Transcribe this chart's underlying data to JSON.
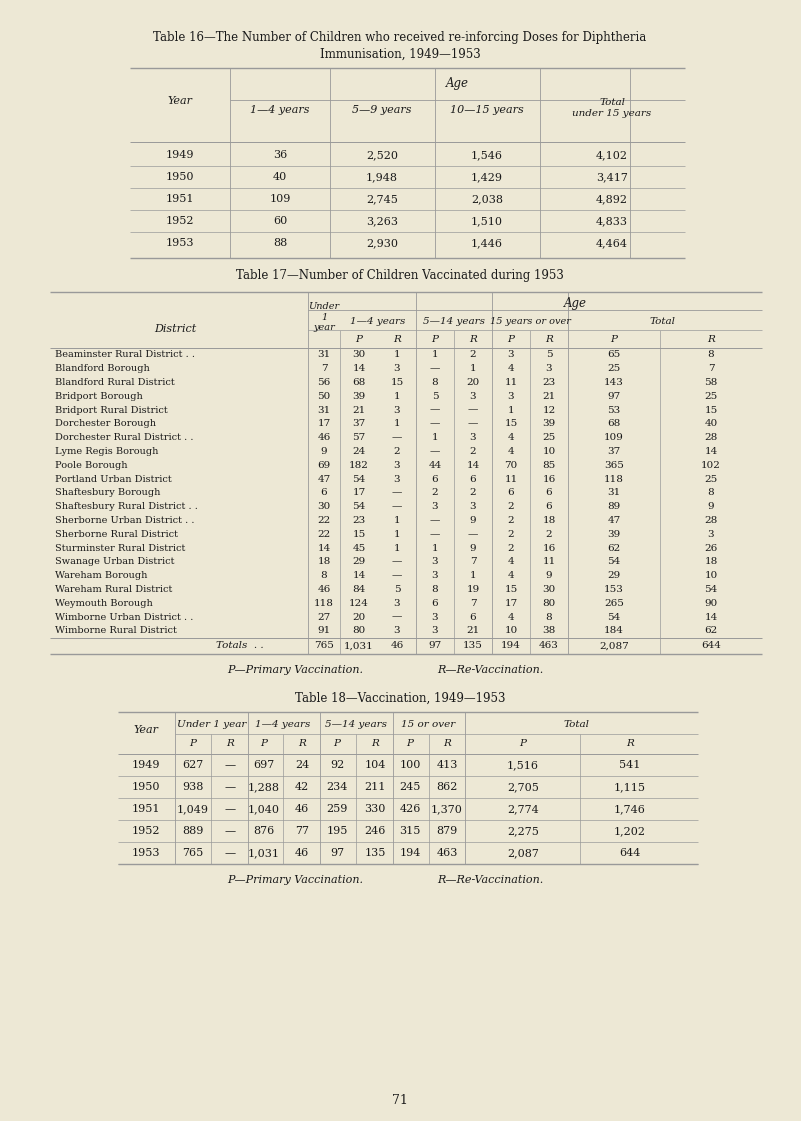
{
  "bg_color": "#ede8d5",
  "text_color": "#1a1a1a",
  "page_number": "71",
  "table16_title1": "Table 16—The Number of Children who received re-inforcing Doses for Diphtheria",
  "table16_title2": "Immunisation, 1949—1953",
  "table16_rows": [
    [
      "1949",
      "36",
      "2,520",
      "1,546",
      "4,102"
    ],
    [
      "1950",
      "40",
      "1,948",
      "1,429",
      "3,417"
    ],
    [
      "1951",
      "109",
      "2,745",
      "2,038",
      "4,892"
    ],
    [
      "1952",
      "60",
      "3,263",
      "1,510",
      "4,833"
    ],
    [
      "1953",
      "88",
      "2,930",
      "1,446",
      "4,464"
    ]
  ],
  "table17_title": "Table 17—Number of Children Vaccinated during 1953",
  "table17_rows": [
    [
      "Beaminster Rural District . .",
      "31",
      "30",
      "1",
      "1",
      "2",
      "3",
      "5",
      "65",
      "8"
    ],
    [
      "Blandford Borough",
      "7",
      "14",
      "3",
      "—",
      "1",
      "4",
      "3",
      "25",
      "7"
    ],
    [
      "Blandford Rural District",
      "56",
      "68",
      "15",
      "8",
      "20",
      "11",
      "23",
      "143",
      "58"
    ],
    [
      "Bridport Borough",
      "50",
      "39",
      "1",
      "5",
      "3",
      "3",
      "21",
      "97",
      "25"
    ],
    [
      "Bridport Rural District",
      "31",
      "21",
      "3",
      "—",
      "—",
      "1",
      "12",
      "53",
      "15"
    ],
    [
      "Dorchester Borough",
      "17",
      "37",
      "1",
      "—",
      "—",
      "15",
      "39",
      "68",
      "40"
    ],
    [
      "Dorchester Rural District . .",
      "46",
      "57",
      "—",
      "1",
      "3",
      "4",
      "25",
      "109",
      "28"
    ],
    [
      "Lyme Regis Borough",
      "9",
      "24",
      "2",
      "—",
      "2",
      "4",
      "10",
      "37",
      "14"
    ],
    [
      "Poole Borough",
      "69",
      "182",
      "3",
      "44",
      "14",
      "70",
      "85",
      "365",
      "102"
    ],
    [
      "Portland Urban District",
      "47",
      "54",
      "3",
      "6",
      "6",
      "11",
      "16",
      "118",
      "25"
    ],
    [
      "Shaftesbury Borough",
      "6",
      "17",
      "—",
      "2",
      "2",
      "6",
      "6",
      "31",
      "8"
    ],
    [
      "Shaftesbury Rural District . .",
      "30",
      "54",
      "—",
      "3",
      "3",
      "2",
      "6",
      "89",
      "9"
    ],
    [
      "Sherborne Urban District . .",
      "22",
      "23",
      "1",
      "—",
      "9",
      "2",
      "18",
      "47",
      "28"
    ],
    [
      "Sherborne Rural District",
      "22",
      "15",
      "1",
      "—",
      "—",
      "2",
      "2",
      "39",
      "3"
    ],
    [
      "Sturminster Rural District",
      "14",
      "45",
      "1",
      "1",
      "9",
      "2",
      "16",
      "62",
      "26"
    ],
    [
      "Swanage Urban District",
      "18",
      "29",
      "—",
      "3",
      "7",
      "4",
      "11",
      "54",
      "18"
    ],
    [
      "Wareham Borough",
      "8",
      "14",
      "—",
      "3",
      "1",
      "4",
      "9",
      "29",
      "10"
    ],
    [
      "Wareham Rural District",
      "46",
      "84",
      "5",
      "8",
      "19",
      "15",
      "30",
      "153",
      "54"
    ],
    [
      "Weymouth Borough",
      "118",
      "124",
      "3",
      "6",
      "7",
      "17",
      "80",
      "265",
      "90"
    ],
    [
      "Wimborne Urban District . .",
      "27",
      "20",
      "—",
      "3",
      "6",
      "4",
      "8",
      "54",
      "14"
    ],
    [
      "Wimborne Rural District",
      "91",
      "80",
      "3",
      "3",
      "21",
      "10",
      "38",
      "184",
      "62"
    ]
  ],
  "table17_totals": [
    "Totals",
    "765",
    "1,031",
    "46",
    "97",
    "135",
    "194",
    "463",
    "2,087",
    "644"
  ],
  "table17_footnote1": "P—Primary Vaccination.",
  "table17_footnote2": "R—Re-Vaccination.",
  "table18_title": "Table 18—Vaccination, 1949—1953",
  "table18_rows": [
    [
      "1949",
      "627",
      "—",
      "697",
      "24",
      "92",
      "104",
      "100",
      "413",
      "1,516",
      "541"
    ],
    [
      "1950",
      "938",
      "—",
      "1,288",
      "42",
      "234",
      "211",
      "245",
      "862",
      "2,705",
      "1,115"
    ],
    [
      "1951",
      "1,049",
      "—",
      "1,040",
      "46",
      "259",
      "330",
      "426",
      "1,370",
      "2,774",
      "1,746"
    ],
    [
      "1952",
      "889",
      "—",
      "876",
      "77",
      "195",
      "246",
      "315",
      "879",
      "2,275",
      "1,202"
    ],
    [
      "1953",
      "765",
      "—",
      "1,031",
      "46",
      "97",
      "135",
      "194",
      "463",
      "2,087",
      "644"
    ]
  ],
  "table18_footnote1": "P—Primary Vaccination.",
  "table18_footnote2": "R—Re-Vaccination."
}
